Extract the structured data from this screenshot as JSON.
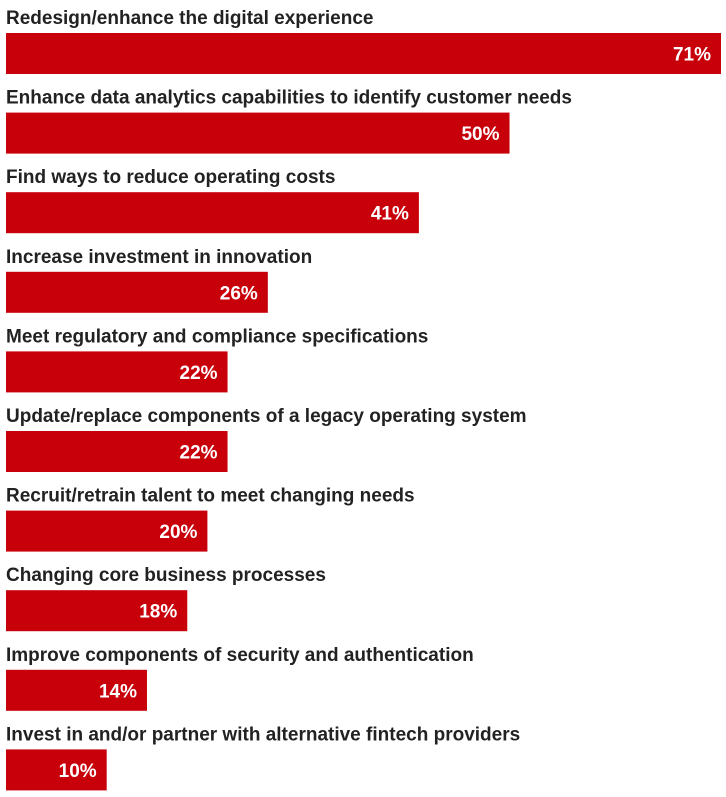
{
  "chart_data": {
    "type": "bar",
    "orientation": "horizontal",
    "categories": [
      "Redesign/enhance the digital experience",
      "Enhance data analytics capabilities to identify customer needs",
      "Find ways to reduce operating costs",
      "Increase investment in innovation",
      "Meet regulatory and compliance specifications",
      "Update/replace components of a legacy operating system",
      "Recruit/retrain talent to meet changing needs",
      "Changing core business processes",
      "Improve components of security and authentication",
      "Invest in and/or partner with alternative fintech providers"
    ],
    "values": [
      71,
      50,
      41,
      26,
      22,
      22,
      20,
      18,
      14,
      10
    ],
    "value_labels": [
      "71%",
      "50%",
      "41%",
      "26%",
      "22%",
      "22%",
      "20%",
      "18%",
      "14%",
      "10%"
    ],
    "unit": "%",
    "title": "",
    "xlabel": "",
    "ylabel": "",
    "xlim": [
      0,
      71
    ],
    "grid": false,
    "legend": "none",
    "bar_color": "#c8000a",
    "label_color": "#222222",
    "value_label_color": "#ffffff"
  }
}
